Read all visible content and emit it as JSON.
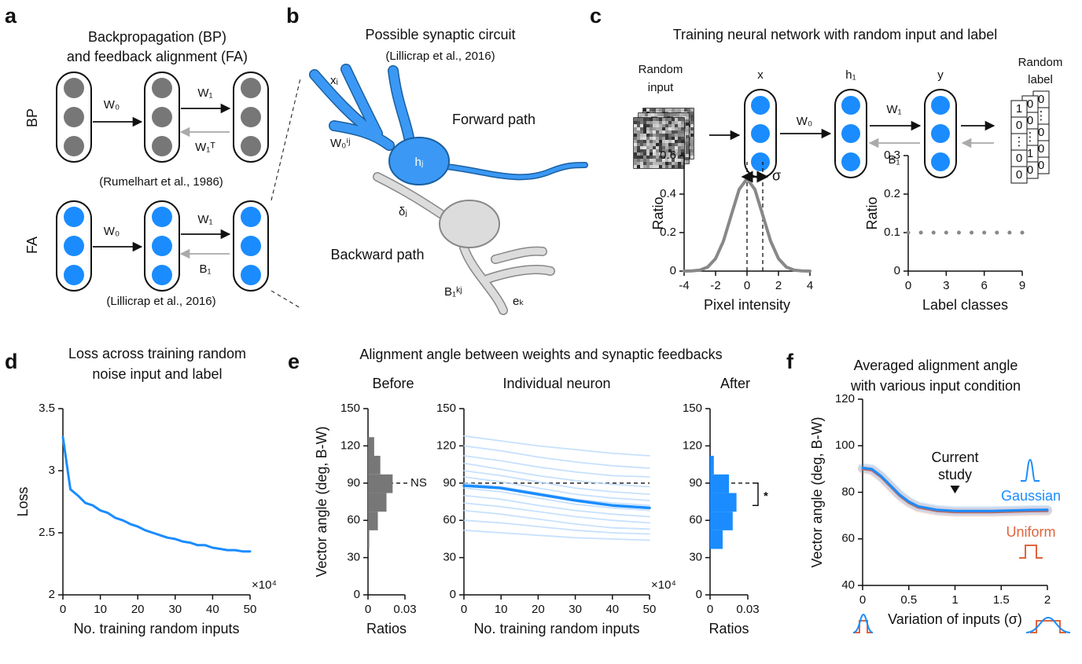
{
  "panel_labels": [
    "a",
    "b",
    "c",
    "d",
    "e",
    "f"
  ],
  "diagram_a": {
    "title": [
      "Backpropagation (BP)",
      "and feedback alignment (FA)"
    ],
    "rows": [
      "BP",
      "FA"
    ],
    "bp_weights": [
      "W₀",
      "W₁",
      "W₁ᵀ"
    ],
    "bp_citation": "(Rumelhart et al., 1986)",
    "fa_weights": [
      "W₀",
      "W₁",
      "B₁"
    ],
    "fa_citation": "(Lillicrap et al., 2016)"
  },
  "diagram_b": {
    "title": "Possible synaptic circuit",
    "citation": "(Lillicrap et al., 2016)",
    "labels": [
      "xᵢ",
      "W₀ⁱʲ",
      "hⱼ",
      "Forward path",
      "δⱼ",
      "Backward path",
      "B₁ᵏʲ",
      "eₖ"
    ]
  },
  "diagram_c": {
    "title": "Training neural network with random input and label",
    "input": [
      "Random",
      "input"
    ],
    "layers": [
      "x",
      "h₁",
      "y"
    ],
    "weights": [
      "W₀",
      "W₁",
      "B₁"
    ],
    "output": [
      "Random",
      "label"
    ],
    "label_cards": [
      [
        "0",
        "⋮",
        "0",
        "0",
        "0"
      ],
      [
        "0",
        "0",
        "⋮",
        "1",
        "0"
      ],
      [
        "1",
        "0",
        "⋮",
        "0",
        "0"
      ]
    ]
  },
  "e_title": "Alignment angle between weights and synaptic feedbacks",
  "chart_data": [
    {
      "type": "line",
      "xlabel": "Pixel intensity",
      "ylabel": "Ratio",
      "color": "#888888",
      "x": [
        -4,
        -3.5,
        -3,
        -2.5,
        -2,
        -1.5,
        -1,
        -0.5,
        0,
        0.5,
        1,
        1.5,
        2,
        2.5,
        3,
        3.5,
        4
      ],
      "values": [
        0,
        0.001,
        0.005,
        0.021,
        0.065,
        0.156,
        0.291,
        0.424,
        0.48,
        0.424,
        0.291,
        0.156,
        0.065,
        0.021,
        0.005,
        0.001,
        0
      ],
      "xlim": [
        -4,
        4
      ],
      "xticks": [
        -4,
        -2,
        0,
        2,
        4
      ],
      "ylim": [
        0,
        0.6
      ],
      "yticks": [
        0,
        0.2,
        0.4,
        0.6
      ],
      "reference_lines": [
        0,
        1
      ],
      "annotation": "σ"
    },
    {
      "type": "scatter",
      "xlabel": "Label classes",
      "ylabel": "Ratio",
      "color": "#888888",
      "x": [
        0,
        1,
        2,
        3,
        4,
        5,
        6,
        7,
        8,
        9
      ],
      "values": [
        0.1,
        0.1,
        0.1,
        0.1,
        0.1,
        0.1,
        0.1,
        0.1,
        0.1,
        0.1
      ],
      "xlim": [
        0,
        9
      ],
      "xticks": [
        0,
        3,
        6,
        9
      ],
      "ylim": [
        0,
        0.3
      ],
      "yticks": [
        0,
        0.1,
        0.2,
        0.3
      ]
    },
    {
      "type": "line",
      "title": [
        "Loss across training random",
        "noise input and label"
      ],
      "xlabel": "No. training random inputs",
      "ylabel": "Loss",
      "x_multiplier": "×10⁴",
      "color": "#1a8cff",
      "x": [
        0,
        2,
        4,
        6,
        8,
        10,
        12,
        14,
        16,
        18,
        20,
        22,
        24,
        26,
        28,
        30,
        32,
        34,
        36,
        38,
        40,
        42,
        44,
        46,
        48,
        50
      ],
      "values": [
        3.27,
        2.85,
        2.8,
        2.74,
        2.72,
        2.68,
        2.66,
        2.62,
        2.6,
        2.57,
        2.55,
        2.52,
        2.5,
        2.48,
        2.46,
        2.45,
        2.43,
        2.42,
        2.4,
        2.4,
        2.38,
        2.37,
        2.36,
        2.36,
        2.35,
        2.35
      ],
      "xlim": [
        0,
        50
      ],
      "xticks": [
        0,
        10,
        20,
        30,
        40,
        50
      ],
      "ylim": [
        2,
        3.5
      ],
      "yticks": [
        2,
        2.5,
        3,
        3.5
      ]
    },
    {
      "type": "histogram",
      "title": "Before",
      "xlabel": "Ratios",
      "ylabel": "Vector angle (deg, B-W)",
      "color": "#777777",
      "bins": [
        37,
        52,
        67,
        82,
        97,
        112,
        127
      ],
      "counts": [
        0.001,
        0.008,
        0.015,
        0.02,
        0.01,
        0.005
      ],
      "xlim": [
        0,
        0.03
      ],
      "xticks": [
        0,
        0.03
      ],
      "ylim": [
        0,
        150
      ],
      "yticks": [
        0,
        30,
        60,
        90,
        120,
        150
      ],
      "reference_line": 90,
      "annotation": "NS"
    },
    {
      "type": "line",
      "title": "Individual neuron",
      "xlabel": "No. training random inputs",
      "x_multiplier": "×10⁴",
      "x": [
        0,
        10,
        20,
        30,
        40,
        50
      ],
      "series": [
        {
          "color": "#b9dafc",
          "values": [
            128,
            124,
            120,
            117,
            114,
            112
          ]
        },
        {
          "color": "#b9dafc",
          "values": [
            120,
            116,
            111,
            107,
            104,
            102
          ]
        },
        {
          "color": "#b9dafc",
          "values": [
            112,
            108,
            103,
            99,
            96,
            95
          ]
        },
        {
          "color": "#b9dafc",
          "values": [
            106,
            101,
            96,
            92,
            89,
            87
          ]
        },
        {
          "color": "#b9dafc",
          "values": [
            100,
            96,
            91,
            86,
            83,
            81
          ]
        },
        {
          "color": "#b9dafc",
          "values": [
            95,
            91,
            86,
            81,
            78,
            76
          ]
        },
        {
          "color": "#b9dafc",
          "values": [
            90,
            87,
            82,
            77,
            74,
            72
          ]
        },
        {
          "color": "#b9dafc",
          "values": [
            86,
            83,
            78,
            73,
            70,
            68
          ]
        },
        {
          "color": "#b9dafc",
          "values": [
            80,
            77,
            72,
            68,
            65,
            63
          ]
        },
        {
          "color": "#b9dafc",
          "values": [
            74,
            71,
            67,
            63,
            60,
            58
          ]
        },
        {
          "color": "#b9dafc",
          "values": [
            68,
            65,
            61,
            57,
            54,
            53
          ]
        },
        {
          "color": "#b9dafc",
          "values": [
            60,
            58,
            55,
            52,
            50,
            49
          ]
        },
        {
          "color": "#b9dafc",
          "values": [
            52,
            50,
            48,
            46,
            45,
            44
          ]
        }
      ],
      "mean": {
        "color": "#1a8cff",
        "values": [
          88,
          86,
          81,
          76,
          72,
          70
        ]
      },
      "xlim": [
        0,
        50
      ],
      "xticks": [
        0,
        10,
        20,
        30,
        40,
        50
      ],
      "ylim": [
        0,
        150
      ],
      "yticks": [
        0,
        30,
        60,
        90,
        120,
        150
      ],
      "reference_line": 90
    },
    {
      "type": "histogram",
      "title": "After",
      "xlabel": "Ratios",
      "color": "#1a8cff",
      "bins": [
        37,
        52,
        67,
        82,
        97,
        112
      ],
      "counts": [
        0.01,
        0.018,
        0.021,
        0.015,
        0.003
      ],
      "xlim": [
        0,
        0.03
      ],
      "xticks": [
        0,
        0.03
      ],
      "ylim": [
        0,
        150
      ],
      "yticks": [
        0,
        30,
        60,
        90,
        120,
        150
      ],
      "reference_line": 90,
      "annotation": "*"
    },
    {
      "type": "line",
      "title": [
        "Averaged alignment angle",
        "with various input condition"
      ],
      "xlabel": "Variation of inputs (σ)",
      "ylabel": "Vector angle (deg, B-W)",
      "x": [
        0,
        0.1,
        0.2,
        0.3,
        0.4,
        0.5,
        0.6,
        0.8,
        1,
        1.2,
        1.4,
        1.6,
        1.8,
        2
      ],
      "series": [
        {
          "name": "Uniform",
          "color": "#e0643c",
          "values": [
            90,
            89.5,
            86.5,
            82.5,
            78.5,
            75.5,
            73.5,
            72,
            71.5,
            71.5,
            71.5,
            71.7,
            71.9,
            72
          ]
        },
        {
          "name": "Gaussian",
          "color": "#1a8cff",
          "values": [
            90.5,
            90,
            87,
            83,
            79,
            76,
            74,
            72.5,
            72,
            72,
            72,
            72.2,
            72.4,
            72.5
          ]
        }
      ],
      "xlim": [
        0,
        2
      ],
      "xticks": [
        0,
        0.5,
        1,
        1.5,
        2
      ],
      "ylim": [
        40,
        120
      ],
      "yticks": [
        40,
        60,
        80,
        100,
        120
      ],
      "annotation": [
        "Current",
        "study"
      ]
    }
  ]
}
